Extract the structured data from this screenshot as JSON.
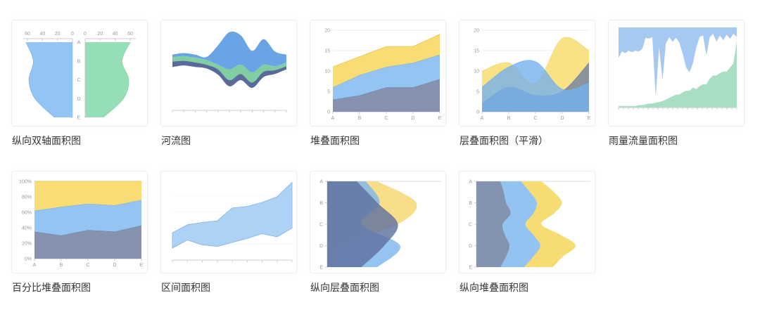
{
  "page": {
    "background": "#ffffff",
    "card_border": "#ededed",
    "title_color": "#333333",
    "axis_label_color": "#999999"
  },
  "chart_data": [
    {
      "title": "纵向双轴面积图",
      "type": "dual_vertical_area",
      "categories": [
        "A",
        "B",
        "C",
        "D",
        "E"
      ],
      "axis_max": 60,
      "left": {
        "axis_ticks": [
          "60",
          "40",
          "20",
          "0"
        ],
        "color": "#93C4F3",
        "stroke": "#7FB4EA",
        "values": [
          62,
          52,
          58,
          50,
          24
        ]
      },
      "right": {
        "axis_ticks": [
          "0",
          "20",
          "40",
          "60"
        ],
        "color": "#95DEB6",
        "stroke": "#82D3A8",
        "values": [
          60,
          49,
          58,
          51,
          24
        ]
      }
    },
    {
      "title": "河流图",
      "type": "theme_river",
      "layers": [
        {
          "name": "navy",
          "color": "#5A6B9B",
          "top": [
            0.46,
            0.45,
            0.47,
            0.5,
            0.56,
            0.7,
            0.62,
            0.73,
            0.59,
            0.57,
            0.52
          ],
          "bottom": [
            0.53,
            0.51,
            0.53,
            0.55,
            0.63,
            0.78,
            0.7,
            0.8,
            0.66,
            0.62,
            0.56
          ]
        },
        {
          "name": "green",
          "color": "#82CEA3",
          "top": [
            0.4,
            0.39,
            0.41,
            0.44,
            0.5,
            0.56,
            0.5,
            0.6,
            0.5,
            0.52,
            0.47
          ],
          "bottom": [
            0.46,
            0.45,
            0.47,
            0.5,
            0.56,
            0.7,
            0.62,
            0.73,
            0.59,
            0.57,
            0.52
          ]
        },
        {
          "name": "blue",
          "color": "#69A4E6",
          "top": [
            0.37,
            0.35,
            0.37,
            0.4,
            0.25,
            0.08,
            0.12,
            0.32,
            0.17,
            0.33,
            0.37
          ],
          "bottom": [
            0.4,
            0.39,
            0.41,
            0.44,
            0.5,
            0.56,
            0.5,
            0.6,
            0.5,
            0.52,
            0.47
          ]
        }
      ],
      "x_tick_count": 10
    },
    {
      "title": "堆叠面积图",
      "type": "stacked_area",
      "categories": [
        "A",
        "B",
        "C",
        "D",
        "E"
      ],
      "y_ticks": [
        "0",
        "5",
        "10",
        "15",
        "20"
      ],
      "y_max": 20,
      "series": [
        {
          "name": "gray",
          "color": "#8793AE",
          "stroke": "#6B7BA3",
          "values": [
            3,
            4,
            6,
            6,
            8
          ]
        },
        {
          "name": "blue",
          "color": "#93C4F2",
          "stroke": "#74ABE3",
          "values": [
            3,
            5,
            5,
            6,
            6
          ]
        },
        {
          "name": "yellow",
          "color": "#F9DC74",
          "stroke": "#EBC94F",
          "values": [
            5,
            4.5,
            5,
            4,
            5
          ]
        }
      ]
    },
    {
      "title": "层叠面积图（平滑）",
      "type": "overlap_area_smooth",
      "categories": [
        "A",
        "B",
        "C",
        "D",
        "E"
      ],
      "y_ticks": [
        "0",
        "5",
        "10",
        "15",
        "20"
      ],
      "y_max": 20,
      "opacity": 0.8,
      "series": [
        {
          "name": "yellow",
          "color": "#F7DA67",
          "values": [
            10,
            12,
            7,
            18,
            15
          ]
        },
        {
          "name": "gray",
          "color": "#6F7FA2",
          "values": [
            2,
            6,
            4,
            5,
            12
          ]
        },
        {
          "name": "blue",
          "color": "#74B2EC",
          "values": [
            6,
            11,
            12.3,
            5.5,
            7
          ]
        }
      ]
    },
    {
      "title": "雨量流量面积图",
      "type": "rainfall_flow",
      "rain_color": "#A6C9F1",
      "flow_color": "#A8DFC3",
      "rain_depths": [
        0.38,
        0.3,
        0.32,
        0.29,
        0.31,
        0.29,
        0.3,
        0.27,
        0.13,
        0.14,
        0.12,
        0.87,
        0.25,
        0.66,
        0.2,
        0.12,
        0.18,
        0.13,
        0.19,
        0.33,
        0.5,
        0.56,
        0.45,
        0.25,
        0.12,
        0.1,
        0.35,
        0.12,
        0.08,
        0.18,
        0.1,
        0.16,
        0.09,
        0.14,
        0.08,
        0.12
      ],
      "flow_heights": [
        0.02,
        0.02,
        0.02,
        0.02,
        0.02,
        0.02,
        0.03,
        0.03,
        0.04,
        0.05,
        0.05,
        0.06,
        0.07,
        0.08,
        0.1,
        0.12,
        0.14,
        0.16,
        0.16,
        0.19,
        0.21,
        0.21,
        0.25,
        0.23,
        0.27,
        0.29,
        0.29,
        0.36,
        0.4,
        0.4,
        0.43,
        0.45,
        0.45,
        0.5,
        0.55,
        0.83
      ],
      "x_tick_count": 24
    },
    {
      "title": "百分比堆叠面积图",
      "type": "stacked_area",
      "percent": true,
      "categories": [
        "A",
        "B",
        "C",
        "D",
        "E"
      ],
      "y_ticks": [
        "0%",
        "20%",
        "40%",
        "60%",
        "80%",
        "100%"
      ],
      "y_max": 100,
      "series": [
        {
          "name": "gray",
          "color": "#8793AE",
          "stroke": "#6B7BA3",
          "values": [
            35,
            30,
            37,
            35,
            43
          ]
        },
        {
          "name": "blue",
          "color": "#93C4F2",
          "stroke": "#74ABE3",
          "values": [
            27,
            37,
            34,
            34,
            33
          ]
        },
        {
          "name": "yellow",
          "color": "#F9DC74",
          "stroke": "#EBC94F",
          "values": [
            38,
            33,
            29,
            31,
            24
          ]
        }
      ]
    },
    {
      "title": "区间面积图",
      "type": "range_area",
      "color": "#AED2F5",
      "stroke": "#7FB2E5",
      "y_max": 100,
      "x_tick_count": 8,
      "upper": [
        34,
        44,
        47,
        49,
        65,
        67,
        72,
        79,
        97
      ],
      "lower": [
        15,
        25,
        19,
        17,
        22,
        27,
        33,
        29,
        40
      ]
    },
    {
      "title": "纵向层叠面积图",
      "type": "vertical_overlap_area",
      "categories": [
        "A",
        "B",
        "C",
        "D",
        "E"
      ],
      "opacity": 0.82,
      "series": [
        {
          "name": "yellow",
          "color": "#F6D76E",
          "values": [
            0.44,
            0.78,
            0.62,
            0.12,
            0.06
          ]
        },
        {
          "name": "blue",
          "color": "#7EB7ED",
          "values": [
            0.34,
            0.46,
            0.3,
            0.64,
            0.44
          ]
        },
        {
          "name": "dark",
          "color": "#5F72A0",
          "values": [
            0.26,
            0.44,
            0.62,
            0.5,
            0.3
          ]
        }
      ]
    },
    {
      "title": "纵向堆叠面积图",
      "type": "vertical_stacked_area",
      "categories": [
        "A",
        "B",
        "C",
        "D",
        "E"
      ],
      "series": [
        {
          "name": "yellow",
          "color": "#F7DC74",
          "cum": [
            0.57,
            0.68,
            0.75,
            0.68,
            0.57,
            0.74,
            0.87,
            0.76,
            0.67
          ]
        },
        {
          "name": "blue",
          "color": "#92C3F1",
          "cum": [
            0.39,
            0.47,
            0.53,
            0.5,
            0.43,
            0.5,
            0.56,
            0.5,
            0.42
          ]
        },
        {
          "name": "dark",
          "color": "#8493B0",
          "cum": [
            0.21,
            0.24,
            0.26,
            0.3,
            0.23,
            0.25,
            0.29,
            0.26,
            0.21
          ]
        }
      ]
    }
  ]
}
